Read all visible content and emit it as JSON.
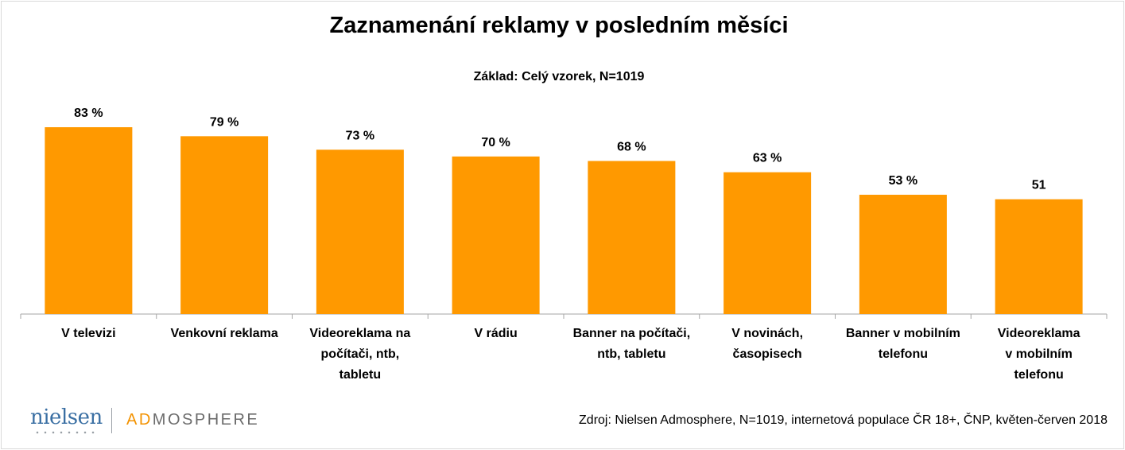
{
  "chart_data": {
    "type": "bar",
    "title": "Zaznamenání reklamy v posledním měsíci",
    "subtitle": "Základ: Celý vzorek, N=1019",
    "categories": [
      [
        "V televizi"
      ],
      [
        "Venkovní reklama"
      ],
      [
        "Videoreklama na",
        "počítači, ntb,",
        "tabletu"
      ],
      [
        "V rádiu"
      ],
      [
        "Banner na počítači,",
        "ntb, tabletu"
      ],
      [
        "V novinách,",
        "časopisech"
      ],
      [
        "Banner v mobilním",
        "telefonu"
      ],
      [
        "Videoreklama",
        "v mobilním",
        "telefonu"
      ]
    ],
    "values": [
      83,
      79,
      73,
      70,
      68,
      63,
      53,
      51
    ],
    "data_labels": [
      "83 %",
      "79 %",
      "73 %",
      "70 %",
      "68 %",
      "63 %",
      "53 %",
      "51"
    ],
    "ylim": [
      0,
      83
    ],
    "grid": false,
    "bar_color": "#ff9900"
  },
  "footer": {
    "logo_nielsen": "nielsen",
    "logo_admosphere_ad": "AD",
    "logo_admosphere_rest": "MOSPHERE",
    "source": "Zdroj: Nielsen Admosphere, N=1019, internetová populace ČR 18+, ČNP, květen-červen 2018"
  }
}
